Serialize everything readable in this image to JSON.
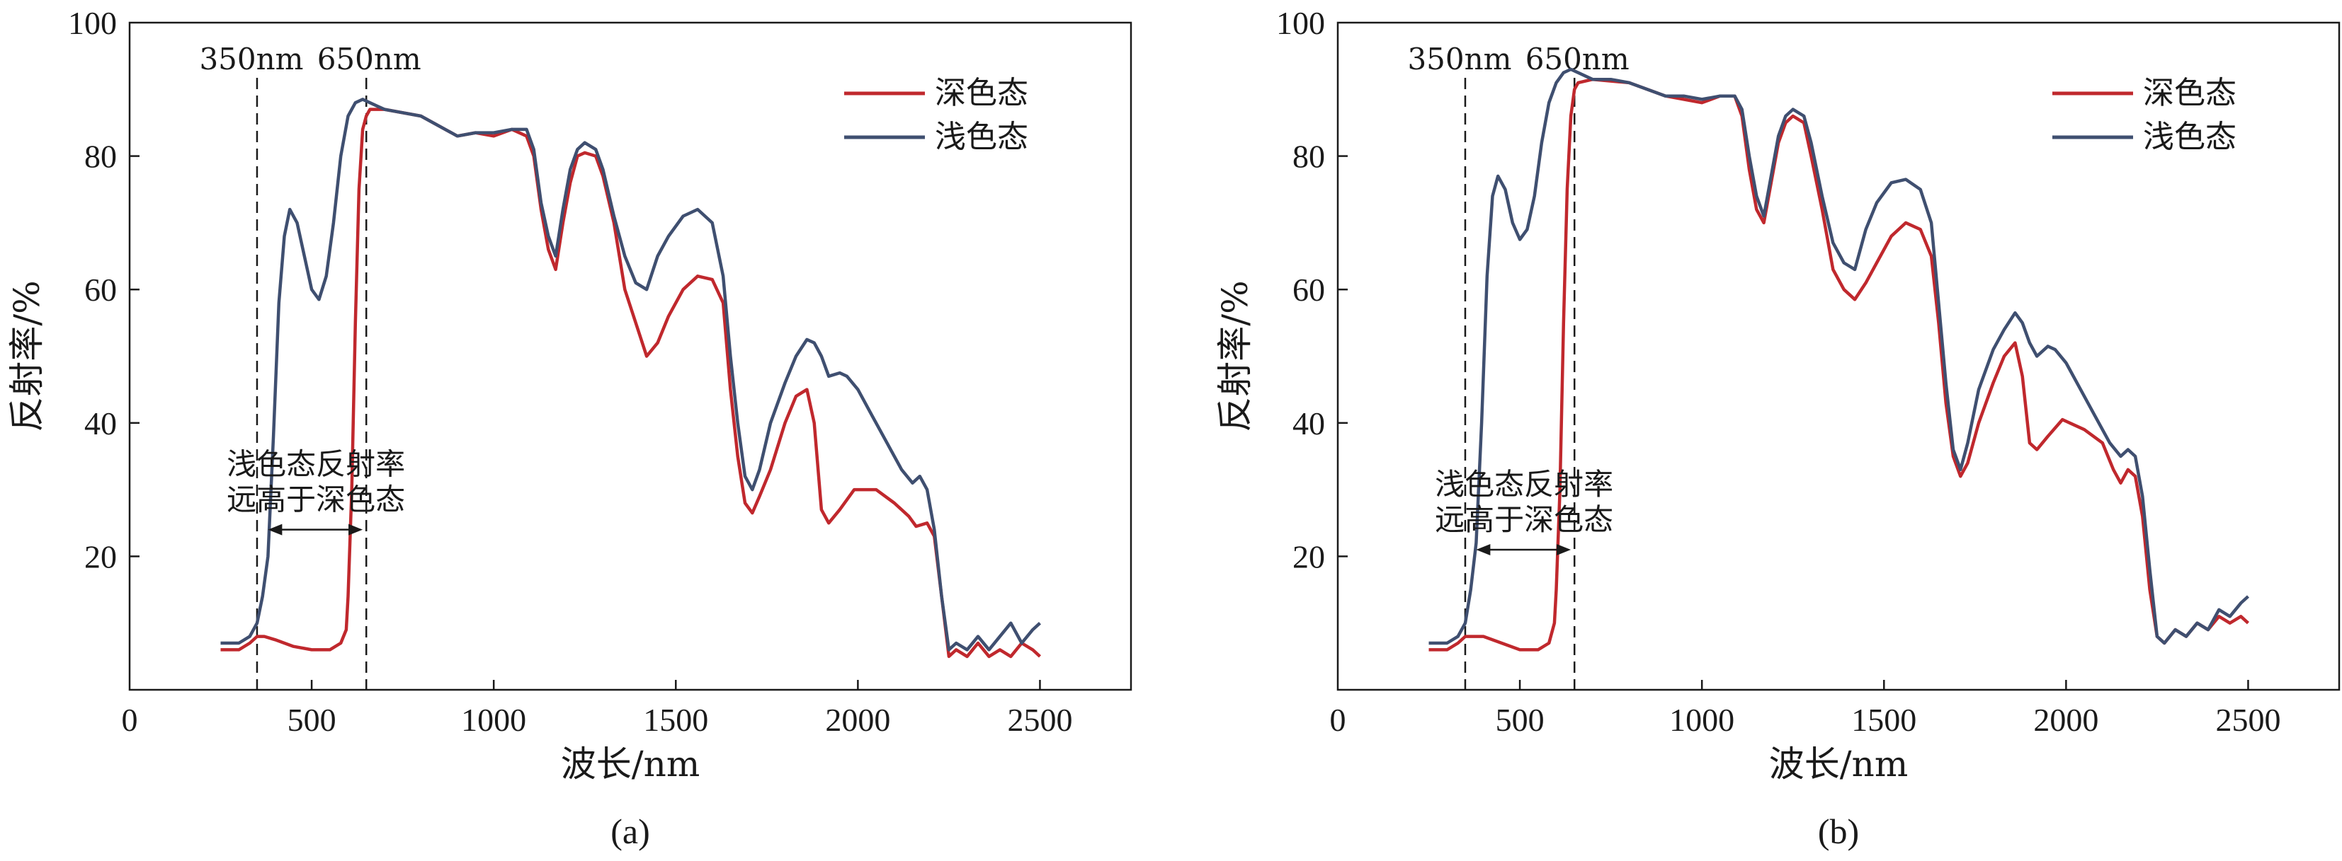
{
  "chart_data": [
    {
      "type": "line",
      "panel_label": "(a)",
      "xlabel": "波长/nm",
      "ylabel": "反射率/%",
      "xlim": [
        0,
        2750
      ],
      "ylim": [
        0,
        100
      ],
      "xticks": [
        0,
        500,
        1000,
        1500,
        2000,
        2500
      ],
      "yticks": [
        20,
        40,
        60,
        80,
        100
      ],
      "legend_position": "top-right",
      "vlines": [
        350,
        650
      ],
      "vline_labels": [
        "350nm",
        "650nm"
      ],
      "annotation": {
        "lines": [
          "浅色态反射率",
          "远高于深色态"
        ],
        "arrow_from": 380,
        "arrow_to": 640,
        "arrow_y": 24
      },
      "series": [
        {
          "name": "深色态",
          "color": "#c0282d",
          "x": [
            250,
            300,
            330,
            350,
            370,
            400,
            450,
            500,
            550,
            580,
            595,
            600,
            610,
            620,
            630,
            640,
            650,
            660,
            700,
            800,
            900,
            950,
            1000,
            1050,
            1090,
            1110,
            1130,
            1150,
            1170,
            1190,
            1210,
            1230,
            1250,
            1280,
            1300,
            1330,
            1360,
            1390,
            1420,
            1450,
            1480,
            1520,
            1560,
            1600,
            1630,
            1650,
            1670,
            1690,
            1710,
            1730,
            1760,
            1800,
            1830,
            1860,
            1880,
            1900,
            1920,
            1950,
            1990,
            2050,
            2100,
            2140,
            2160,
            2190,
            2210,
            2230,
            2250,
            2270,
            2300,
            2330,
            2360,
            2390,
            2420,
            2450,
            2480,
            2500
          ],
          "y": [
            6,
            6,
            7,
            8,
            8,
            7.5,
            6.5,
            6,
            6,
            7,
            9,
            14,
            30,
            55,
            75,
            84,
            86,
            87,
            87,
            86,
            83,
            83.5,
            83,
            84,
            83,
            80,
            72,
            66,
            63,
            70,
            76,
            80,
            80.5,
            80,
            77,
            70,
            60,
            55,
            50,
            52,
            56,
            60,
            62,
            61.5,
            58,
            45,
            35,
            28,
            26.5,
            29,
            33,
            40,
            44,
            45,
            40,
            27,
            25,
            27,
            30,
            30,
            28,
            26,
            24.5,
            25,
            23,
            14,
            5,
            6,
            5,
            7,
            5,
            6,
            5,
            7,
            6,
            5
          ]
        },
        {
          "name": "浅色态",
          "color": "#3f4f70",
          "x": [
            250,
            300,
            330,
            350,
            365,
            380,
            395,
            410,
            425,
            440,
            460,
            480,
            500,
            520,
            540,
            560,
            580,
            600,
            620,
            640,
            660,
            680,
            700,
            750,
            800,
            900,
            950,
            1000,
            1050,
            1090,
            1110,
            1130,
            1150,
            1170,
            1190,
            1210,
            1230,
            1250,
            1280,
            1300,
            1330,
            1360,
            1390,
            1420,
            1450,
            1480,
            1520,
            1560,
            1600,
            1630,
            1650,
            1670,
            1690,
            1710,
            1730,
            1760,
            1800,
            1830,
            1860,
            1880,
            1900,
            1920,
            1950,
            1970,
            2000,
            2040,
            2080,
            2120,
            2150,
            2170,
            2190,
            2210,
            2230,
            2250,
            2270,
            2300,
            2330,
            2360,
            2390,
            2420,
            2450,
            2480,
            2500
          ],
          "y": [
            7,
            7,
            8,
            10,
            14,
            20,
            38,
            58,
            68,
            72,
            70,
            65,
            60,
            58.5,
            62,
            70,
            80,
            86,
            88,
            88.5,
            88,
            87.5,
            87,
            86.5,
            86,
            83,
            83.5,
            83.5,
            84,
            84,
            81,
            73,
            68,
            65,
            72,
            78,
            81,
            82,
            81,
            78,
            71,
            65,
            61,
            60,
            65,
            68,
            71,
            72,
            70,
            62,
            50,
            40,
            32,
            30,
            33,
            40,
            46,
            50,
            52.5,
            52,
            50,
            47,
            47.5,
            47,
            45,
            41,
            37,
            33,
            31,
            32,
            30,
            24,
            14,
            6,
            7,
            6,
            8,
            6,
            8,
            10,
            7,
            9,
            10
          ]
        }
      ]
    },
    {
      "type": "line",
      "panel_label": "(b)",
      "xlabel": "波长/nm",
      "ylabel": "反射率/%",
      "xlim": [
        0,
        2750
      ],
      "ylim": [
        0,
        100
      ],
      "xticks": [
        0,
        500,
        1000,
        1500,
        2000,
        2500
      ],
      "yticks": [
        20,
        40,
        60,
        80,
        100
      ],
      "legend_position": "top-right",
      "vlines": [
        350,
        650
      ],
      "vline_labels": [
        "350nm",
        "650nm"
      ],
      "annotation": {
        "lines": [
          "浅色态反射率",
          "远高于深色态"
        ],
        "arrow_from": 380,
        "arrow_to": 640,
        "arrow_y": 21
      },
      "series": [
        {
          "name": "深色态",
          "color": "#c0282d",
          "x": [
            250,
            300,
            330,
            350,
            370,
            400,
            450,
            500,
            550,
            580,
            595,
            600,
            610,
            620,
            630,
            640,
            650,
            660,
            700,
            800,
            900,
            950,
            1000,
            1050,
            1090,
            1110,
            1130,
            1150,
            1170,
            1190,
            1210,
            1230,
            1250,
            1280,
            1300,
            1330,
            1360,
            1390,
            1420,
            1450,
            1480,
            1520,
            1560,
            1600,
            1630,
            1650,
            1670,
            1690,
            1710,
            1730,
            1760,
            1800,
            1830,
            1860,
            1880,
            1900,
            1920,
            1950,
            1990,
            2050,
            2100,
            2130,
            2150,
            2170,
            2190,
            2210,
            2230,
            2250,
            2270,
            2300,
            2330,
            2360,
            2390,
            2420,
            2450,
            2480,
            2500
          ],
          "y": [
            6,
            6,
            7,
            8,
            8,
            8,
            7,
            6,
            6,
            7,
            10,
            15,
            30,
            55,
            75,
            86,
            90,
            91,
            91.5,
            91,
            89,
            88.5,
            88,
            89,
            89,
            86,
            78,
            72,
            70,
            76,
            82,
            85,
            86,
            85,
            80,
            72,
            63,
            60,
            58.5,
            61,
            64,
            68,
            70,
            69,
            65,
            55,
            43,
            35,
            32,
            34,
            40,
            46,
            50,
            52,
            47,
            37,
            36,
            38,
            40.5,
            39,
            37,
            33,
            31,
            33,
            32,
            26,
            15,
            8,
            7,
            9,
            8,
            10,
            9,
            11,
            10,
            11,
            10
          ]
        },
        {
          "name": "浅色态",
          "color": "#3f4f70",
          "x": [
            250,
            300,
            330,
            350,
            365,
            380,
            395,
            410,
            425,
            440,
            460,
            480,
            500,
            520,
            540,
            560,
            580,
            600,
            620,
            640,
            660,
            680,
            700,
            750,
            800,
            900,
            950,
            1000,
            1050,
            1090,
            1110,
            1130,
            1150,
            1170,
            1190,
            1210,
            1230,
            1250,
            1280,
            1300,
            1330,
            1360,
            1390,
            1420,
            1450,
            1480,
            1520,
            1560,
            1600,
            1630,
            1650,
            1670,
            1690,
            1710,
            1730,
            1760,
            1800,
            1830,
            1860,
            1880,
            1900,
            1920,
            1950,
            1970,
            2000,
            2040,
            2080,
            2120,
            2150,
            2170,
            2190,
            2210,
            2230,
            2250,
            2270,
            2300,
            2330,
            2360,
            2390,
            2420,
            2450,
            2480,
            2500
          ],
          "y": [
            7,
            7,
            8,
            10,
            15,
            22,
            40,
            62,
            74,
            77,
            75,
            70,
            67.5,
            69,
            74,
            82,
            88,
            91,
            92.5,
            93,
            92.5,
            92,
            91.5,
            91.5,
            91,
            89,
            89,
            88.5,
            89,
            89,
            87,
            80,
            74,
            71,
            77,
            83,
            86,
            87,
            86,
            82,
            74,
            67,
            64,
            63,
            69,
            73,
            76,
            76.5,
            75,
            70,
            58,
            46,
            36,
            33,
            37,
            45,
            51,
            54,
            56.5,
            55,
            52,
            50,
            51.5,
            51,
            49,
            45,
            41,
            37,
            35,
            36,
            35,
            29,
            18,
            8,
            7,
            9,
            8,
            10,
            9,
            12,
            11,
            13,
            14
          ]
        }
      ]
    }
  ]
}
